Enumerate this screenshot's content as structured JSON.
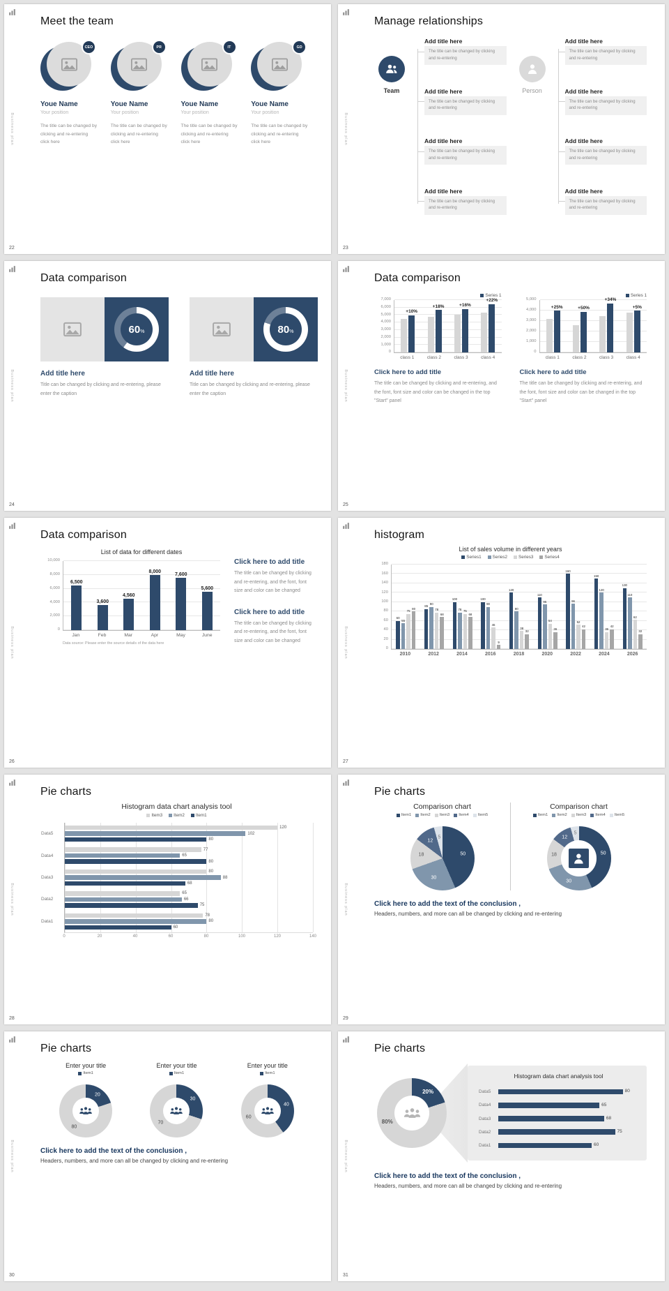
{
  "meta": {
    "rail_text": "Business plan",
    "logo_icon": "bar-chart-logo-icon"
  },
  "colors": {
    "navy": "#2e4a6b",
    "steel": "#8096ac",
    "slate": "#51698a",
    "pale": "#dde3ea",
    "gray_light": "#d6d6d6",
    "gray_mid": "#a6a6a6"
  },
  "conclusion": {
    "title": "Click here to add the text of the conclusion ,",
    "subtitle": "Headers, numbers, and more can all be changed by clicking and re-entering"
  },
  "slides": {
    "s22": {
      "page": "22",
      "title": "Meet the team",
      "member_name": "Youe Name",
      "member_position": "Your position",
      "member_desc": "The title can be changed by clicking and re-entering click here",
      "badges": [
        "CEO",
        "PR",
        "IT",
        "GD"
      ]
    },
    "s23": {
      "page": "23",
      "title": "Manage relationships",
      "team_label": "Team",
      "person_label": "Person",
      "item_title": "Add title here",
      "item_text": "The title can be changed by clicking and re-entering",
      "items_per_group": 4
    },
    "s24": {
      "page": "24",
      "title": "Data comparison",
      "panel_title": "Add title here",
      "panel_caption": "Title can be changed by clicking and re-entering, please enter the caption"
    },
    "s25": {
      "page": "25",
      "title": "Data comparison",
      "block_title": "Click here to add title",
      "block_text": "The title can be changed by clicking and re-entering, and the font, font size and color can be changed in the top \"Start\" panel"
    },
    "s26": {
      "page": "26",
      "title": "Data comparison",
      "block_title": "Click here to add title",
      "block_text": "The title can be changed by clicking and re-entering, and the font, font size and color can be changed"
    },
    "s27": {
      "page": "27",
      "title": "histogram"
    },
    "s28": {
      "page": "28",
      "title": "Pie charts"
    },
    "s29": {
      "page": "29",
      "title": "Pie charts"
    },
    "s30": {
      "page": "30",
      "title": "Pie charts"
    },
    "s31": {
      "page": "31",
      "title": "Pie charts"
    }
  },
  "chart_data": {
    "c24": {
      "type": "progress-donut",
      "title": "",
      "percents": [
        60,
        80
      ]
    },
    "c25_left": {
      "type": "bar",
      "title": "",
      "legend": [
        {
          "name": "Series 1",
          "color": "navy"
        }
      ],
      "categories": [
        "class 1",
        "class 2",
        "class 3",
        "class 4"
      ],
      "series": [
        {
          "name": "",
          "color": "gray_light",
          "values": [
            4500,
            4800,
            5000,
            5300
          ]
        },
        {
          "name": "Series 1",
          "color": "navy",
          "values": [
            4950,
            5660,
            5800,
            6470
          ],
          "labels": [
            "+10%",
            "+18%",
            "+16%",
            "+22%"
          ]
        }
      ],
      "ylim": [
        0,
        7000
      ],
      "ystep": 1000,
      "yfmt": "comma"
    },
    "c25_right": {
      "type": "bar",
      "title": "",
      "legend": [
        {
          "name": "Series 1",
          "color": "navy"
        }
      ],
      "categories": [
        "class 1",
        "class 2",
        "class 3",
        "class 4"
      ],
      "series": [
        {
          "name": "",
          "color": "gray_light",
          "values": [
            3200,
            2600,
            3500,
            3800
          ]
        },
        {
          "name": "Series 1",
          "color": "navy",
          "values": [
            4000,
            3900,
            4690,
            3990
          ],
          "labels": [
            "+25%",
            "+50%",
            "+34%",
            "+5%"
          ]
        }
      ],
      "ylim": [
        0,
        5000
      ],
      "ystep": 1000,
      "yfmt": "comma"
    },
    "c26": {
      "type": "bar",
      "title": "List of data for different dates",
      "categories": [
        "Jan",
        "Feb",
        "Mar",
        "Apr",
        "May",
        "June"
      ],
      "series": [
        {
          "name": "",
          "color": "navy",
          "values": [
            6500,
            3600,
            4560,
            8000,
            7600,
            5600
          ],
          "labels": [
            "6,500",
            "3,600",
            "4,560",
            "8,000",
            "7,600",
            "5,600"
          ]
        }
      ],
      "ylim": [
        0,
        10000
      ],
      "ystep": 2000,
      "yfmt": "comma",
      "source_note": "Data source: Please enter the source details of the data here"
    },
    "c27": {
      "type": "bar",
      "title": "List of sales volume in different years",
      "legend": [
        {
          "name": "Series1",
          "color": "navy"
        },
        {
          "name": "Series2",
          "color": "steel"
        },
        {
          "name": "Series3",
          "color": "gray_light"
        },
        {
          "name": "Series4",
          "color": "gray_mid"
        }
      ],
      "categories": [
        "2010",
        "2012",
        "2014",
        "2016",
        "2018",
        "2020",
        "2022",
        "2024",
        "2026"
      ],
      "series": [
        {
          "name": "Series1",
          "color": "navy",
          "values": [
            60,
            85,
            100,
            100,
            120,
            110,
            160,
            150,
            130
          ],
          "show_values": true
        },
        {
          "name": "Series2",
          "color": "steel",
          "values": [
            55,
            90,
            78,
            90,
            80,
            95,
            96,
            120,
            110
          ],
          "show_values": true
        },
        {
          "name": "Series3",
          "color": "gray_light",
          "values": [
            75,
            78,
            75,
            46,
            38,
            54,
            52,
            36,
            62
          ],
          "show_values": true
        },
        {
          "name": "Series4",
          "color": "gray_mid",
          "values": [
            80,
            68,
            68,
            9,
            32,
            36,
            42,
            42,
            32
          ],
          "show_values": true
        }
      ],
      "ylim": [
        0,
        180
      ],
      "ystep": 20
    },
    "c28": {
      "type": "hbar",
      "title": "Histogram data chart analysis tool",
      "legend": [
        {
          "name": "Item3",
          "color": "gray_light"
        },
        {
          "name": "Item2",
          "color": "steel"
        },
        {
          "name": "Item1",
          "color": "navy"
        }
      ],
      "categories": [
        "Data5",
        "Data4",
        "Data3",
        "Data2",
        "Data1"
      ],
      "series": [
        {
          "name": "Item3",
          "color": "gray_light",
          "values": [
            120,
            77,
            80,
            65,
            78
          ]
        },
        {
          "name": "Item2",
          "color": "steel",
          "values": [
            102,
            65,
            88,
            66,
            80
          ]
        },
        {
          "name": "Item1",
          "color": "navy",
          "values": [
            80,
            80,
            68,
            75,
            60
          ]
        }
      ],
      "xlim": [
        0,
        140
      ],
      "xstep": 20
    },
    "c29_pie": {
      "type": "pie",
      "title": "Comparison chart",
      "legend": [
        {
          "name": "Item1",
          "color": "navy"
        },
        {
          "name": "Item2",
          "color": "steel"
        },
        {
          "name": "Item3",
          "color": "gray_light"
        },
        {
          "name": "Item4",
          "color": "slate"
        },
        {
          "name": "Item5",
          "color": "pale"
        }
      ],
      "values": [
        50,
        30,
        18,
        12,
        5
      ],
      "colors": [
        "navy",
        "steel",
        "gray_light",
        "slate",
        "pale"
      ],
      "label_colors": [
        "#ffffff",
        "#ffffff",
        "#555555",
        "#ffffff",
        "#777777"
      ]
    },
    "c29_donut": {
      "type": "donut",
      "title": "Comparison chart",
      "legend": [
        {
          "name": "Item1",
          "color": "navy"
        },
        {
          "name": "Item2",
          "color": "steel"
        },
        {
          "name": "Item3",
          "color": "gray_light"
        },
        {
          "name": "Item4",
          "color": "slate"
        },
        {
          "name": "Item5",
          "color": "pale"
        }
      ],
      "values": [
        50,
        30,
        18,
        12,
        5
      ],
      "colors": [
        "navy",
        "steel",
        "gray_light",
        "slate",
        "pale"
      ],
      "label_colors": [
        "#ffffff",
        "#ffffff",
        "#555555",
        "#ffffff",
        "#777777"
      ],
      "hole": 0.56,
      "center_icon": "person-icon",
      "center_style": "badge"
    },
    "c30": {
      "type": "donut",
      "title": "Enter your title",
      "legend": [
        {
          "name": "Item1",
          "color": "navy"
        }
      ],
      "charts": [
        {
          "values": [
            20,
            80
          ]
        },
        {
          "values": [
            30,
            70
          ]
        },
        {
          "values": [
            40,
            60
          ]
        }
      ],
      "colors": [
        "navy",
        "gray_light"
      ],
      "label_colors": [
        "#ffffff",
        "#444444"
      ],
      "hole": 0.5,
      "center_icon": "people-group-icon"
    },
    "c31_donut": {
      "type": "donut",
      "title": "",
      "values": [
        20,
        80
      ],
      "labels": [
        "20%",
        "80%"
      ],
      "label_angles": [
        38,
        250
      ],
      "colors": [
        "navy",
        "gray_light"
      ],
      "label_colors": [
        "#ffffff",
        "#555555"
      ],
      "hole": 0.5,
      "center_icon": "people-group-icon",
      "center_color": "#b5b5b5"
    },
    "c31_bars": {
      "type": "hbar",
      "title": "Histogram data chart analysis tool",
      "categories": [
        "Data5",
        "Data4",
        "Data3",
        "Data2",
        "Data1"
      ],
      "series": [
        {
          "name": "",
          "color": "navy",
          "values": [
            80,
            65,
            68,
            75,
            60
          ]
        }
      ],
      "xlim": [
        0,
        90
      ]
    }
  }
}
